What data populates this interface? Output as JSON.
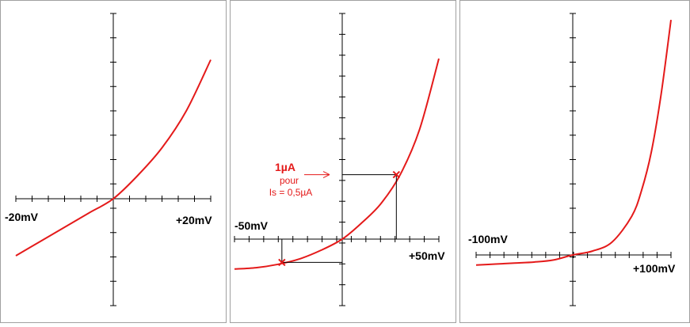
{
  "colors": {
    "curve": "#e41a1a",
    "axis": "#000000",
    "frame": "#a0a0a0",
    "background": "#ffffff"
  },
  "chart_data": [
    {
      "type": "line",
      "title": "",
      "xlabel": "",
      "ylabel": "",
      "x_tick_labels": {
        "min": "-20mV",
        "max": "+20mV"
      },
      "xlim": [
        -20,
        20
      ],
      "ylim": [
        -3,
        4
      ],
      "x_ticks": 12,
      "y_ticks": 12,
      "series": [
        {
          "x": [
            -20,
            -15,
            -10,
            -5,
            0,
            5,
            10,
            15,
            20
          ],
          "y": [
            -1.6,
            -1.2,
            -0.8,
            -0.4,
            0,
            0.5,
            1.1,
            1.9,
            3.0
          ]
        }
      ],
      "grid": false
    },
    {
      "type": "line",
      "title": "",
      "xlabel": "",
      "ylabel": "",
      "x_tick_labels": {
        "min": "-50mV",
        "max": "+50mV"
      },
      "xlim": [
        -50,
        50
      ],
      "ylim": [
        -1,
        3.5
      ],
      "x_ticks": 14,
      "y_ticks": 14,
      "series": [
        {
          "x": [
            -50,
            -40,
            -30,
            -20,
            -10,
            0,
            10,
            20,
            30,
            40,
            50
          ],
          "y": [
            -0.45,
            -0.43,
            -0.38,
            -0.3,
            -0.17,
            0,
            0.25,
            0.55,
            1.0,
            1.7,
            2.8
          ]
        }
      ],
      "markers": [
        {
          "x": 28,
          "y": 1.0
        },
        {
          "x": -28,
          "y": -0.35
        }
      ],
      "annotation": {
        "value": "1µA",
        "line1": "pour",
        "line2": "Is = 0,5µA"
      },
      "grid": false
    },
    {
      "type": "line",
      "title": "",
      "xlabel": "",
      "ylabel": "",
      "x_tick_labels": {
        "min": "-100mV",
        "max": "+100mV"
      },
      "xlim": [
        -100,
        100
      ],
      "ylim": [
        -0.5,
        7.5
      ],
      "x_ticks": 14,
      "y_ticks": 12,
      "series": [
        {
          "x": [
            -100,
            -80,
            -60,
            -40,
            -20,
            0,
            20,
            40,
            60,
            70,
            80,
            90,
            100
          ],
          "y": [
            -0.1,
            -0.09,
            -0.08,
            -0.07,
            -0.05,
            0,
            0.12,
            0.4,
            1.2,
            2.0,
            3.2,
            5.0,
            7.3
          ]
        }
      ],
      "grid": false
    }
  ]
}
